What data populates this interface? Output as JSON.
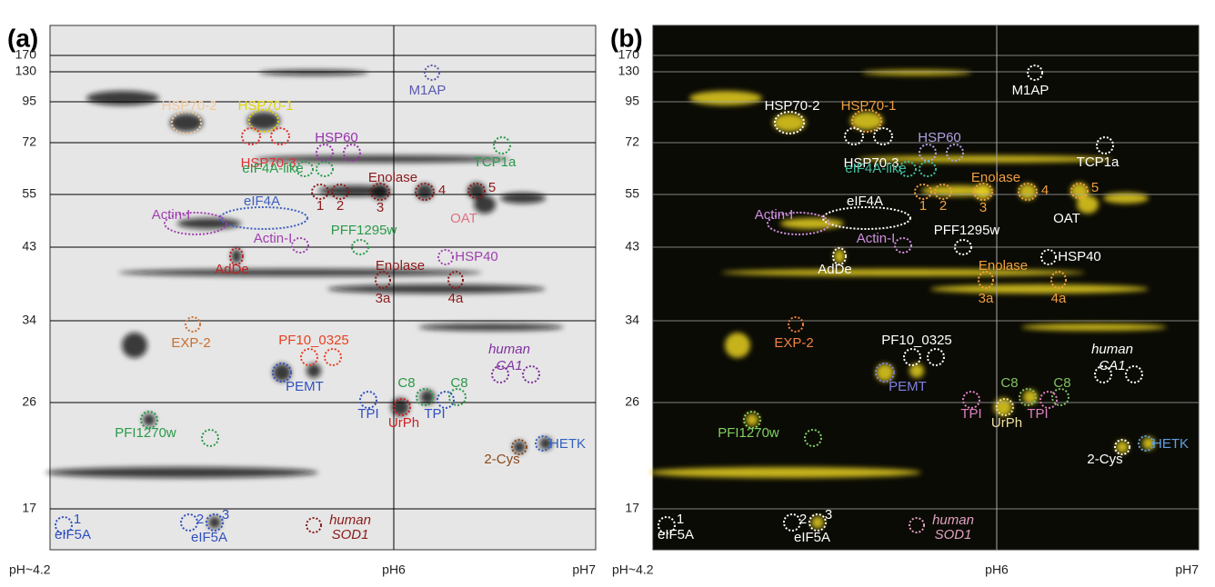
{
  "figure": {
    "mw_markers": [
      "170",
      "130",
      "95",
      "72",
      "55",
      "43",
      "34",
      "26",
      "17"
    ],
    "ph_labels": [
      "pH~4.2",
      "pH6",
      "pH7"
    ],
    "panels": [
      {
        "label": "(a)",
        "annotations": [
          {
            "text": "HSP70-2",
            "color": "#f2c89a"
          },
          {
            "text": "HSP70-1",
            "color": "#e2d400"
          },
          {
            "text": "HSP70-3",
            "color": "#e03030"
          },
          {
            "text": "HSP60",
            "color": "#9b30b0"
          },
          {
            "text": "eIF4A-like",
            "color": "#2a9a4a"
          },
          {
            "text": "TCP1a",
            "color": "#2a9a4a"
          },
          {
            "text": "M1AP",
            "color": "#5a5ab0"
          },
          {
            "text": "Enolase",
            "color": "#8b1a1a"
          },
          {
            "text": "1",
            "color": "#8b1a1a"
          },
          {
            "text": "2",
            "color": "#8b1a1a"
          },
          {
            "text": "3",
            "color": "#8b1a1a"
          },
          {
            "text": "4",
            "color": "#8b1a1a"
          },
          {
            "text": "5",
            "color": "#8b1a1a"
          },
          {
            "text": "OAT",
            "color": "#e07080"
          },
          {
            "text": "eIF4A",
            "color": "#4060c0"
          },
          {
            "text": "Actin-I",
            "color": "#a040b0"
          },
          {
            "text": "Actin-I",
            "color": "#a040b0"
          },
          {
            "text": "PFF1295w",
            "color": "#2a9a4a"
          },
          {
            "text": "HSP40",
            "color": "#a040b0"
          },
          {
            "text": "AdDe",
            "color": "#c02020"
          },
          {
            "text": "Enolase",
            "color": "#8b1a1a"
          },
          {
            "text": "3a",
            "color": "#8b1a1a"
          },
          {
            "text": "4a",
            "color": "#8b1a1a"
          },
          {
            "text": "EXP-2",
            "color": "#c87030"
          },
          {
            "text": "PF10_0325",
            "color": "#e84020"
          },
          {
            "text": "human",
            "color": "#8030a0"
          },
          {
            "text": "CA1",
            "color": "#8030a0"
          },
          {
            "text": "PEMT",
            "color": "#3050c0"
          },
          {
            "text": "C8",
            "color": "#2a9a4a"
          },
          {
            "text": "C8",
            "color": "#2a9a4a"
          },
          {
            "text": "TPI",
            "color": "#3050c0"
          },
          {
            "text": "TPI",
            "color": "#3050c0"
          },
          {
            "text": "UrPh",
            "color": "#d02020"
          },
          {
            "text": "PFI1270w",
            "color": "#2a9a4a"
          },
          {
            "text": "HETK",
            "color": "#3060c0"
          },
          {
            "text": "2-Cys",
            "color": "#8b4a1a"
          },
          {
            "text": "human",
            "color": "#8b1a1a"
          },
          {
            "text": "SOD1",
            "color": "#8b1a1a"
          },
          {
            "text": "1",
            "color": "#3050c0"
          },
          {
            "text": "eIF5A",
            "color": "#3050c0"
          },
          {
            "text": "2",
            "color": "#3050c0"
          },
          {
            "text": "3",
            "color": "#3050c0"
          },
          {
            "text": "eIF5A",
            "color": "#3050c0"
          }
        ]
      },
      {
        "label": "(b)",
        "annotations": [
          {
            "text": "HSP70-2",
            "color": "#ffffff"
          },
          {
            "text": "HSP70-1",
            "color": "#f0a040"
          },
          {
            "text": "HSP70-3",
            "color": "#ffffff"
          },
          {
            "text": "HSP60",
            "color": "#b0a0e0"
          },
          {
            "text": "eIF4A-like",
            "color": "#40c0a0"
          },
          {
            "text": "TCP1a",
            "color": "#ffffff"
          },
          {
            "text": "M1AP",
            "color": "#ffffff"
          },
          {
            "text": "Enolase",
            "color": "#f0a040"
          },
          {
            "text": "1",
            "color": "#f0a040"
          },
          {
            "text": "2",
            "color": "#f0a040"
          },
          {
            "text": "3",
            "color": "#f0a040"
          },
          {
            "text": "4",
            "color": "#f0a040"
          },
          {
            "text": "5",
            "color": "#f0a040"
          },
          {
            "text": "OAT",
            "color": "#ffffff"
          },
          {
            "text": "eIF4A",
            "color": "#ffffff"
          },
          {
            "text": "Actin-I",
            "color": "#d090e0"
          },
          {
            "text": "Actin-I",
            "color": "#d090e0"
          },
          {
            "text": "PFF1295w",
            "color": "#ffffff"
          },
          {
            "text": "HSP40",
            "color": "#ffffff"
          },
          {
            "text": "AdDe",
            "color": "#ffffff"
          },
          {
            "text": "Enolase",
            "color": "#f0a040"
          },
          {
            "text": "3a",
            "color": "#f0a040"
          },
          {
            "text": "4a",
            "color": "#f0a040"
          },
          {
            "text": "EXP-2",
            "color": "#f08040"
          },
          {
            "text": "PF10_0325",
            "color": "#ffffff"
          },
          {
            "text": "human",
            "color": "#ffffff"
          },
          {
            "text": "CA1",
            "color": "#ffffff"
          },
          {
            "text": "PEMT",
            "color": "#8080e0"
          },
          {
            "text": "C8",
            "color": "#80c060"
          },
          {
            "text": "C8",
            "color": "#80c060"
          },
          {
            "text": "TPI",
            "color": "#e080c0"
          },
          {
            "text": "TPI",
            "color": "#e080c0"
          },
          {
            "text": "UrPh",
            "color": "#f0e0a0"
          },
          {
            "text": "PFI1270w",
            "color": "#80d060"
          },
          {
            "text": "HETK",
            "color": "#60a0e0"
          },
          {
            "text": "2-Cys",
            "color": "#ffffff"
          },
          {
            "text": "human",
            "color": "#e0a0c0"
          },
          {
            "text": "SOD1",
            "color": "#e0a0c0"
          },
          {
            "text": "1",
            "color": "#ffffff"
          },
          {
            "text": "eIF5A",
            "color": "#ffffff"
          },
          {
            "text": "2",
            "color": "#ffffff"
          },
          {
            "text": "3",
            "color": "#ffffff"
          },
          {
            "text": "eIF5A",
            "color": "#ffffff"
          }
        ]
      }
    ]
  }
}
